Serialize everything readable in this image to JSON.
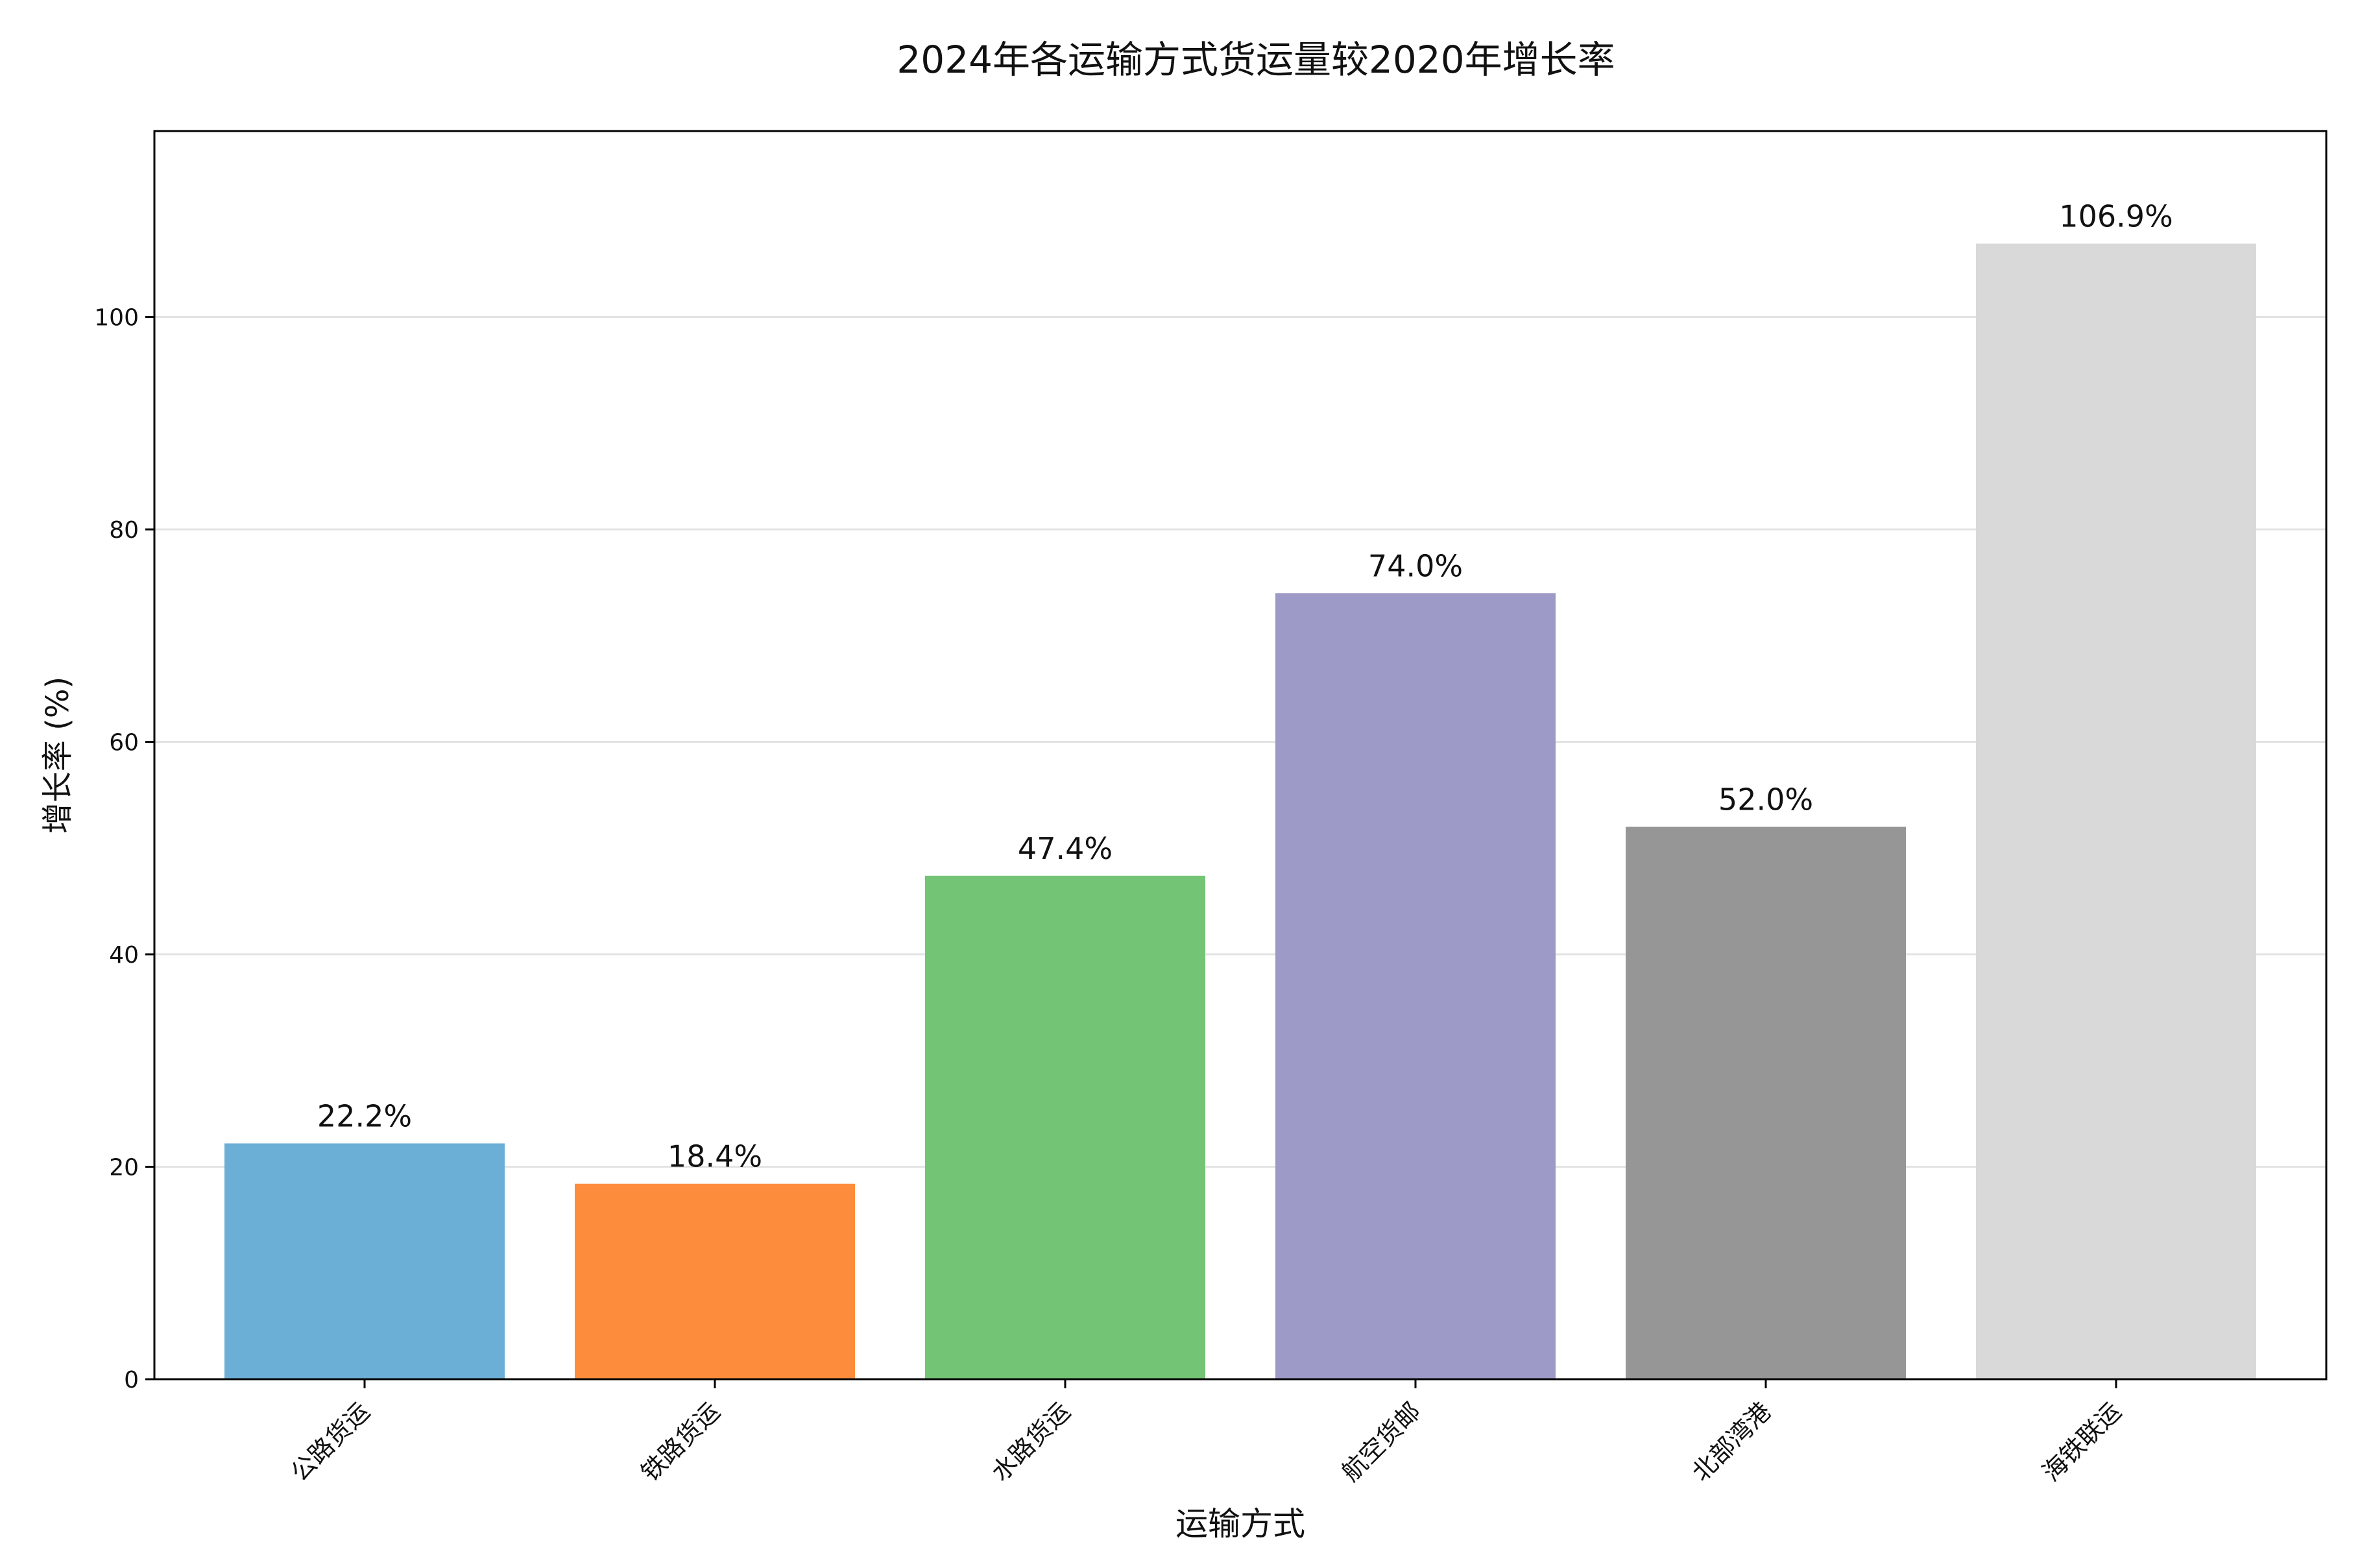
{
  "chart_data": {
    "type": "bar",
    "title": "2024年各运输方式货运量较2020年增长率",
    "xlabel": "运输方式",
    "ylabel": "增长率 (%)",
    "categories": [
      "公路货运",
      "铁路货运",
      "水路货运",
      "航空货邮",
      "北部湾港",
      "海铁联运"
    ],
    "values": [
      22.2,
      18.4,
      47.4,
      74.0,
      52.0,
      106.9
    ],
    "value_labels": [
      "22.2%",
      "18.4%",
      "47.4%",
      "74.0%",
      "52.0%",
      "106.9%"
    ],
    "colors": [
      "#6baed6",
      "#fd8d3c",
      "#74c476",
      "#9e9ac8",
      "#969696",
      "#d9d9d9"
    ],
    "ylim": [
      0,
      117.5
    ],
    "yticks": [
      0,
      20,
      40,
      60,
      80,
      100
    ],
    "grid": "y",
    "legend": "none"
  }
}
